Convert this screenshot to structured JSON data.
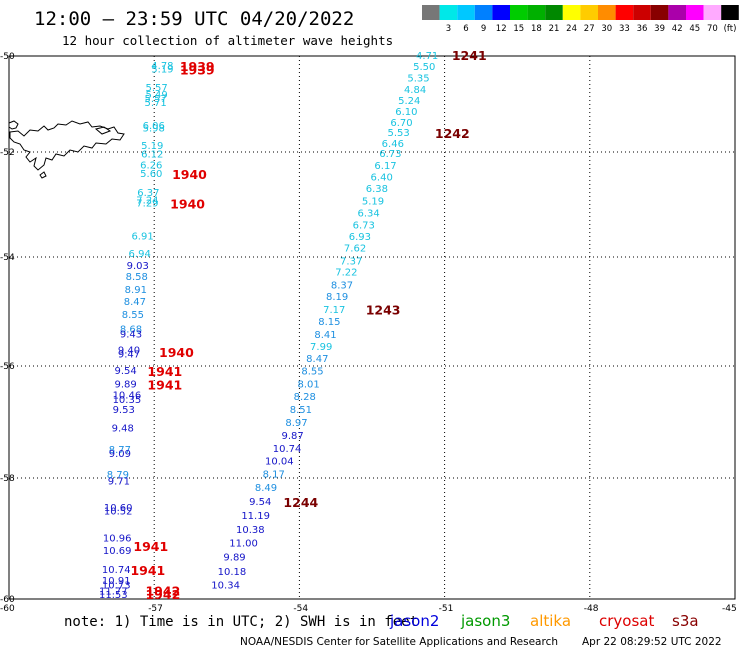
{
  "header": {
    "title": "12:00 – 23:59 UTC 04/20/2022",
    "subtitle": "12 hour collection of altimeter wave heights"
  },
  "legend": {
    "swatches": [
      {
        "label": "",
        "color": "#777777"
      },
      {
        "label": "3",
        "color": "#00e8e8"
      },
      {
        "label": "6",
        "color": "#00c8ff"
      },
      {
        "label": "9",
        "color": "#0080ff"
      },
      {
        "label": "12",
        "color": "#0000ff"
      },
      {
        "label": "15",
        "color": "#00cc00"
      },
      {
        "label": "18",
        "color": "#00b000"
      },
      {
        "label": "21",
        "color": "#008800"
      },
      {
        "label": "24",
        "color": "#ffff00"
      },
      {
        "label": "27",
        "color": "#ffcc00"
      },
      {
        "label": "30",
        "color": "#ff8c00"
      },
      {
        "label": "33",
        "color": "#ff0000"
      },
      {
        "label": "36",
        "color": "#cc0000"
      },
      {
        "label": "39",
        "color": "#880000"
      },
      {
        "label": "42",
        "color": "#aa00aa"
      },
      {
        "label": "45",
        "color": "#ff00ff"
      },
      {
        "label": "70",
        "color": "#ffaaff"
      },
      {
        "label": "(ft)",
        "color": "#000000"
      }
    ]
  },
  "colors": {
    "light": "#19c3e0",
    "mid": "#1e8fe0",
    "deep": "#1515c8",
    "time_red": "#e00000",
    "time_dark": "#7a0000"
  },
  "axes": {
    "lat_labels": [
      "-50",
      "-52",
      "-54",
      "-56",
      "-58",
      "-60"
    ],
    "lon_labels": [
      "-60",
      "-57",
      "-54",
      "-51",
      "-48",
      "-45"
    ]
  },
  "land": {
    "name": "Falkland Islands"
  },
  "tracks": [
    {
      "id": "track-west",
      "heights": [
        {
          "v": "4.78",
          "c": "light",
          "lon": -57.06,
          "lat": -50.19
        },
        {
          "v": "5.19",
          "c": "light",
          "lon": -57.06,
          "lat": -50.26
        },
        {
          "v": "5.57",
          "c": "light",
          "lon": -57.18,
          "lat": -50.65
        },
        {
          "v": "5.49",
          "c": "light",
          "lon": -57.18,
          "lat": -50.79
        },
        {
          "v": "5.57",
          "c": "light",
          "lon": -57.2,
          "lat": -50.88
        },
        {
          "v": "5.71",
          "c": "light",
          "lon": -57.2,
          "lat": -50.96
        },
        {
          "v": "6.06",
          "c": "light",
          "lon": -57.24,
          "lat": -51.44
        },
        {
          "v": "5.98",
          "c": "light",
          "lon": -57.24,
          "lat": -51.49
        },
        {
          "v": "5.19",
          "c": "light",
          "lon": -57.27,
          "lat": -51.85
        },
        {
          "v": "6.12",
          "c": "light",
          "lon": -57.27,
          "lat": -52.03
        },
        {
          "v": "6.26",
          "c": "light",
          "lon": -57.29,
          "lat": -52.24
        },
        {
          "v": "5.60",
          "c": "light",
          "lon": -57.29,
          "lat": -52.4
        },
        {
          "v": "6.37",
          "c": "light",
          "lon": -57.35,
          "lat": -52.76
        },
        {
          "v": "7.24",
          "c": "light",
          "lon": -57.37,
          "lat": -52.9
        },
        {
          "v": "7.29",
          "c": "light",
          "lon": -57.37,
          "lat": -52.96
        },
        {
          "v": "6.91",
          "c": "light",
          "lon": -57.47,
          "lat": -53.59
        },
        {
          "v": "6.94",
          "c": "light",
          "lon": -57.53,
          "lat": -53.92
        },
        {
          "v": "9.03",
          "c": "deep",
          "lon": -57.57,
          "lat": -54.15
        },
        {
          "v": "8.58",
          "c": "mid",
          "lon": -57.59,
          "lat": -54.35
        },
        {
          "v": "8.91",
          "c": "mid",
          "lon": -57.61,
          "lat": -54.59
        },
        {
          "v": "8.47",
          "c": "mid",
          "lon": -57.63,
          "lat": -54.81
        },
        {
          "v": "8.55",
          "c": "mid",
          "lon": -57.67,
          "lat": -55.05
        },
        {
          "v": "8.68",
          "c": "mid",
          "lon": -57.71,
          "lat": -55.31
        },
        {
          "v": "9.43",
          "c": "deep",
          "lon": -57.71,
          "lat": -55.4
        },
        {
          "v": "9.40",
          "c": "deep",
          "lon": -57.75,
          "lat": -55.7
        },
        {
          "v": "9.47",
          "c": "deep",
          "lon": -57.75,
          "lat": -55.77
        },
        {
          "v": "9.54",
          "c": "deep",
          "lon": -57.82,
          "lat": -56.07
        },
        {
          "v": "9.89",
          "c": "deep",
          "lon": -57.82,
          "lat": -56.31
        },
        {
          "v": "10.46",
          "c": "deep",
          "lon": -57.86,
          "lat": -56.51
        },
        {
          "v": "10.35",
          "c": "deep",
          "lon": -57.86,
          "lat": -56.59
        },
        {
          "v": "9.53",
          "c": "deep",
          "lon": -57.86,
          "lat": -56.77
        },
        {
          "v": "9.48",
          "c": "deep",
          "lon": -57.88,
          "lat": -57.1
        },
        {
          "v": "8.77",
          "c": "mid",
          "lon": -57.94,
          "lat": -57.48
        },
        {
          "v": "9.09",
          "c": "deep",
          "lon": -57.94,
          "lat": -57.55
        },
        {
          "v": "8.79",
          "c": "mid",
          "lon": -57.98,
          "lat": -57.93
        },
        {
          "v": "9.71",
          "c": "deep",
          "lon": -57.96,
          "lat": -58.04
        },
        {
          "v": "10.60",
          "c": "deep",
          "lon": -58.04,
          "lat": -58.48
        },
        {
          "v": "10.52",
          "c": "deep",
          "lon": -58.04,
          "lat": -58.54
        },
        {
          "v": "10.96",
          "c": "deep",
          "lon": -58.06,
          "lat": -58.98
        },
        {
          "v": "10.69",
          "c": "deep",
          "lon": -58.06,
          "lat": -59.19
        },
        {
          "v": "10.74",
          "c": "deep",
          "lon": -58.08,
          "lat": -59.5
        },
        {
          "v": "10.91",
          "c": "deep",
          "lon": -58.08,
          "lat": -59.69
        },
        {
          "v": "10.73",
          "c": "deep",
          "lon": -58.08,
          "lat": -59.76
        },
        {
          "v": "11.77",
          "c": "deep",
          "lon": -58.14,
          "lat": -59.86
        },
        {
          "v": "11.53",
          "c": "deep",
          "lon": -58.14,
          "lat": -59.92
        }
      ],
      "times": [
        {
          "t": "1939",
          "c": "time_red",
          "lon": -56.47,
          "lat": -50.21
        },
        {
          "t": "1939",
          "c": "time_red",
          "lon": -56.47,
          "lat": -50.28
        },
        {
          "t": "1940",
          "c": "time_red",
          "lon": -56.63,
          "lat": -52.42
        },
        {
          "t": "1940",
          "c": "time_red",
          "lon": -56.67,
          "lat": -52.98
        },
        {
          "t": "1940",
          "c": "time_red",
          "lon": -56.9,
          "lat": -55.74
        },
        {
          "t": "1941",
          "c": "time_red",
          "lon": -57.14,
          "lat": -56.09
        },
        {
          "t": "1941",
          "c": "time_red",
          "lon": -57.14,
          "lat": -56.33
        },
        {
          "t": "1941",
          "c": "time_red",
          "lon": -57.43,
          "lat": -59.12
        },
        {
          "t": "1941",
          "c": "time_red",
          "lon": -57.49,
          "lat": -59.52
        },
        {
          "t": "1942",
          "c": "time_red",
          "lon": -57.18,
          "lat": -59.86
        },
        {
          "t": "1942",
          "c": "time_red",
          "lon": -57.18,
          "lat": -59.92
        }
      ]
    },
    {
      "id": "track-east",
      "heights": [
        {
          "v": "4.71",
          "c": "light",
          "lon": -51.59,
          "lat": -49.98
        },
        {
          "v": "5.50",
          "c": "light",
          "lon": -51.65,
          "lat": -50.21
        },
        {
          "v": "5.35",
          "c": "light",
          "lon": -51.77,
          "lat": -50.45
        },
        {
          "v": "4.84",
          "c": "light",
          "lon": -51.84,
          "lat": -50.69
        },
        {
          "v": "5.24",
          "c": "light",
          "lon": -51.96,
          "lat": -50.92
        },
        {
          "v": "6.10",
          "c": "light",
          "lon": -52.02,
          "lat": -51.15
        },
        {
          "v": "6.70",
          "c": "light",
          "lon": -52.12,
          "lat": -51.37
        },
        {
          "v": "5.53",
          "c": "light",
          "lon": -52.18,
          "lat": -51.58
        },
        {
          "v": "6.46",
          "c": "light",
          "lon": -52.3,
          "lat": -51.81
        },
        {
          "v": "6.73",
          "c": "light",
          "lon": -52.35,
          "lat": -52.02
        },
        {
          "v": "6.17",
          "c": "light",
          "lon": -52.45,
          "lat": -52.25
        },
        {
          "v": "6.40",
          "c": "light",
          "lon": -52.53,
          "lat": -52.47
        },
        {
          "v": "6.38",
          "c": "light",
          "lon": -52.63,
          "lat": -52.69
        },
        {
          "v": "5.19",
          "c": "light",
          "lon": -52.71,
          "lat": -52.92
        },
        {
          "v": "6.34",
          "c": "light",
          "lon": -52.8,
          "lat": -53.15
        },
        {
          "v": "6.73",
          "c": "light",
          "lon": -52.9,
          "lat": -53.38
        },
        {
          "v": "6.93",
          "c": "light",
          "lon": -52.98,
          "lat": -53.6
        },
        {
          "v": "7.62",
          "c": "light",
          "lon": -53.08,
          "lat": -53.82
        },
        {
          "v": "7.37",
          "c": "light",
          "lon": -53.16,
          "lat": -54.06
        },
        {
          "v": "7.22",
          "c": "light",
          "lon": -53.26,
          "lat": -54.27
        },
        {
          "v": "8.37",
          "c": "mid",
          "lon": -53.35,
          "lat": -54.5
        },
        {
          "v": "8.19",
          "c": "mid",
          "lon": -53.45,
          "lat": -54.72
        },
        {
          "v": "7.17",
          "c": "light",
          "lon": -53.51,
          "lat": -54.95
        },
        {
          "v": "8.15",
          "c": "mid",
          "lon": -53.61,
          "lat": -55.17
        },
        {
          "v": "8.41",
          "c": "mid",
          "lon": -53.69,
          "lat": -55.41
        },
        {
          "v": "7.99",
          "c": "light",
          "lon": -53.78,
          "lat": -55.63
        },
        {
          "v": "8.47",
          "c": "mid",
          "lon": -53.86,
          "lat": -55.85
        },
        {
          "v": "8.55",
          "c": "mid",
          "lon": -53.96,
          "lat": -56.08
        },
        {
          "v": "8.01",
          "c": "mid",
          "lon": -54.04,
          "lat": -56.31
        },
        {
          "v": "8.28",
          "c": "mid",
          "lon": -54.12,
          "lat": -56.54
        },
        {
          "v": "8.51",
          "c": "mid",
          "lon": -54.2,
          "lat": -56.77
        },
        {
          "v": "8.97",
          "c": "mid",
          "lon": -54.29,
          "lat": -57.0
        },
        {
          "v": "9.87",
          "c": "deep",
          "lon": -54.37,
          "lat": -57.23
        },
        {
          "v": "10.74",
          "c": "deep",
          "lon": -54.55,
          "lat": -57.46
        },
        {
          "v": "10.04",
          "c": "deep",
          "lon": -54.71,
          "lat": -57.69
        },
        {
          "v": "8.17",
          "c": "mid",
          "lon": -54.76,
          "lat": -57.92
        },
        {
          "v": "8.49",
          "c": "mid",
          "lon": -54.92,
          "lat": -58.15
        },
        {
          "v": "9.54",
          "c": "deep",
          "lon": -55.04,
          "lat": -58.38
        },
        {
          "v": "11.19",
          "c": "deep",
          "lon": -55.2,
          "lat": -58.61
        },
        {
          "v": "10.38",
          "c": "deep",
          "lon": -55.31,
          "lat": -58.84
        },
        {
          "v": "11.00",
          "c": "deep",
          "lon": -55.45,
          "lat": -59.07
        },
        {
          "v": "9.89",
          "c": "deep",
          "lon": -55.57,
          "lat": -59.3
        },
        {
          "v": "10.18",
          "c": "deep",
          "lon": -55.69,
          "lat": -59.54
        },
        {
          "v": "10.34",
          "c": "deep",
          "lon": -55.82,
          "lat": -59.76
        }
      ],
      "times": [
        {
          "t": "1241",
          "c": "time_dark",
          "lon": -50.85,
          "lat": -49.98
        },
        {
          "t": "1242",
          "c": "time_dark",
          "lon": -51.2,
          "lat": -51.6
        },
        {
          "t": "1243",
          "c": "time_dark",
          "lon": -52.63,
          "lat": -54.96
        },
        {
          "t": "1244",
          "c": "time_dark",
          "lon": -54.33,
          "lat": -58.4
        }
      ]
    }
  ],
  "footer": {
    "note": "note: 1) Time is in UTC; 2) SWH is in feet",
    "missions": [
      {
        "name": "jason2",
        "color": "#0000dd"
      },
      {
        "name": "jason3",
        "color": "#009900"
      },
      {
        "name": "altika",
        "color": "#ff9900"
      },
      {
        "name": "cryosat",
        "color": "#dd0000"
      },
      {
        "name": "s3a",
        "color": "#880000"
      }
    ],
    "credit": "NOAA/NESDIS Center for Satellite Applications and Research",
    "timestamp": "Apr 22 08:29:52 UTC 2022"
  }
}
